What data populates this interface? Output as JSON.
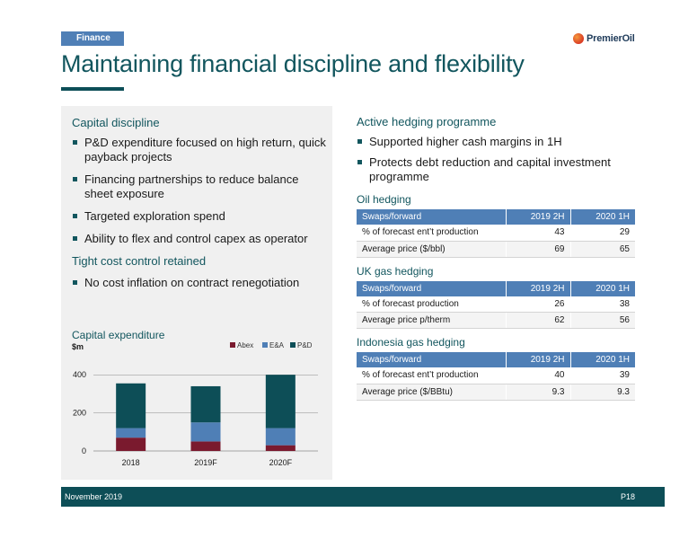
{
  "header": {
    "section_tag": "Finance",
    "title": "Maintaining financial discipline and flexibility",
    "logo_text": "PremierOil"
  },
  "left_panel": {
    "capital_discipline_heading": "Capital discipline",
    "capital_discipline_bullets": [
      "P&D expenditure focused on high return, quick payback projects",
      "Financing partnerships to reduce balance sheet exposure",
      "Targeted exploration spend",
      "Ability to flex and control capex as operator"
    ],
    "cost_control_heading": "Tight cost control retained",
    "cost_control_bullets": [
      "No cost inflation on contract renegotiation"
    ]
  },
  "chart_data": {
    "type": "bar",
    "stacked": true,
    "title": "Capital expenditure",
    "subtitle": "$m",
    "xlabel": "",
    "ylabel": "",
    "categories": [
      "2018",
      "2019F",
      "2020F"
    ],
    "series": [
      {
        "name": "Abex",
        "color": "#7a1a2e",
        "values": [
          70,
          50,
          30
        ]
      },
      {
        "name": "E&A",
        "color": "#4f7fb6",
        "values": [
          50,
          100,
          90
        ]
      },
      {
        "name": "P&D",
        "color": "#0d4e57",
        "values": [
          235,
          190,
          280
        ]
      }
    ],
    "yticks": [
      0,
      200,
      400
    ],
    "ylim": [
      0,
      420
    ],
    "legend": "top-right",
    "grid": true
  },
  "right_col": {
    "hedging_heading": "Active hedging programme",
    "hedging_bullets": [
      "Supported higher cash margins in 1H",
      "Protects debt reduction and capital investment programme"
    ],
    "tables": [
      {
        "title": "Oil hedging",
        "headers": [
          "Swaps/forward",
          "2019 2H",
          "2020 1H"
        ],
        "rows": [
          [
            "% of forecast ent’t production",
            "43",
            "29"
          ],
          [
            "Average price ($/bbl)",
            "69",
            "65"
          ]
        ]
      },
      {
        "title": "UK gas hedging",
        "headers": [
          "Swaps/forward",
          "2019 2H",
          "2020 1H"
        ],
        "rows": [
          [
            "% of forecast production",
            "26",
            "38"
          ],
          [
            "Average price p/therm",
            "62",
            "56"
          ]
        ]
      },
      {
        "title": "Indonesia gas hedging",
        "headers": [
          "Swaps/forward",
          "2019 2H",
          "2020 1H"
        ],
        "rows": [
          [
            "% of forecast ent’t production",
            "40",
            "39"
          ],
          [
            "Average price ($/BBtu)",
            "9.3",
            "9.3"
          ]
        ]
      }
    ]
  },
  "footer": {
    "date": "November 2019",
    "page": "P18"
  }
}
